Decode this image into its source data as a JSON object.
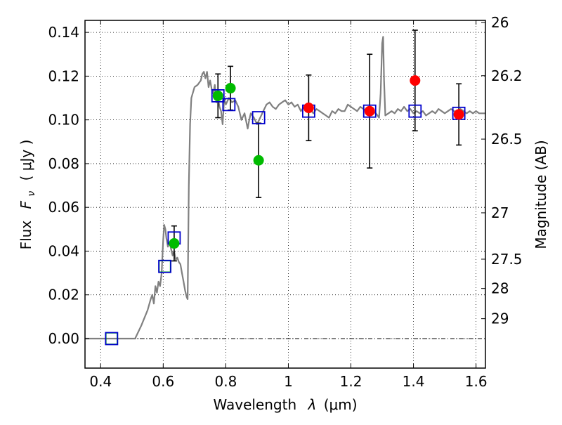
{
  "chart_data": {
    "type": "scatter",
    "xlabel_text": "Wavelength",
    "xlabel_symbol": "λ",
    "xlabel_unit": "(μm)",
    "ylabel_text": "Flux",
    "ylabel_symbol": "F",
    "ylabel_sub": "ν",
    "ylabel_unit": "( μJy )",
    "y2label": "Magnitude (AB)",
    "xlim": [
      0.35,
      1.63
    ],
    "ylim": [
      -0.0135,
      0.1455
    ],
    "grid": true,
    "x_ticks": [
      {
        "value": 0.4,
        "label": "0.4"
      },
      {
        "value": 0.6,
        "label": "0.6"
      },
      {
        "value": 0.8,
        "label": "0.8"
      },
      {
        "value": 1.0,
        "label": "1"
      },
      {
        "value": 1.2,
        "label": "1.2"
      },
      {
        "value": 1.4,
        "label": "1.4"
      },
      {
        "value": 1.6,
        "label": "1.6"
      }
    ],
    "y_ticks": [
      {
        "value": 0.0,
        "label": "0.00"
      },
      {
        "value": 0.02,
        "label": "0.02"
      },
      {
        "value": 0.04,
        "label": "0.04"
      },
      {
        "value": 0.06,
        "label": "0.06"
      },
      {
        "value": 0.08,
        "label": "0.08"
      },
      {
        "value": 0.1,
        "label": "0.10"
      },
      {
        "value": 0.12,
        "label": "0.12"
      },
      {
        "value": 0.14,
        "label": "0.14"
      }
    ],
    "y2_ticks": [
      {
        "label": "26",
        "flux": 0.1445
      },
      {
        "label": "26.2",
        "flux": 0.1202
      },
      {
        "label": "26.5",
        "flux": 0.0912
      },
      {
        "label": "27",
        "flux": 0.0575
      },
      {
        "label": "27.5",
        "flux": 0.0363
      },
      {
        "label": "28",
        "flux": 0.0229
      },
      {
        "label": "29",
        "flux": 0.0091
      }
    ],
    "model_spectrum": {
      "color": "#808080",
      "points": [
        [
          0.35,
          0.0
        ],
        [
          0.45,
          0.0
        ],
        [
          0.5,
          0.0
        ],
        [
          0.51,
          0.0
        ],
        [
          0.53,
          0.006
        ],
        [
          0.55,
          0.013
        ],
        [
          0.56,
          0.018
        ],
        [
          0.565,
          0.02
        ],
        [
          0.57,
          0.016
        ],
        [
          0.575,
          0.024
        ],
        [
          0.58,
          0.021
        ],
        [
          0.585,
          0.026
        ],
        [
          0.59,
          0.024
        ],
        [
          0.595,
          0.03
        ],
        [
          0.6,
          0.045
        ],
        [
          0.603,
          0.052
        ],
        [
          0.607,
          0.05
        ],
        [
          0.61,
          0.046
        ],
        [
          0.615,
          0.042
        ],
        [
          0.62,
          0.044
        ],
        [
          0.625,
          0.041
        ],
        [
          0.63,
          0.038
        ],
        [
          0.635,
          0.04
        ],
        [
          0.64,
          0.036
        ],
        [
          0.645,
          0.037
        ],
        [
          0.65,
          0.035
        ],
        [
          0.655,
          0.034
        ],
        [
          0.66,
          0.03
        ],
        [
          0.665,
          0.026
        ],
        [
          0.67,
          0.022
        ],
        [
          0.675,
          0.019
        ],
        [
          0.678,
          0.018
        ],
        [
          0.682,
          0.07
        ],
        [
          0.686,
          0.098
        ],
        [
          0.69,
          0.11
        ],
        [
          0.7,
          0.115
        ],
        [
          0.71,
          0.116
        ],
        [
          0.72,
          0.118
        ],
        [
          0.725,
          0.121
        ],
        [
          0.73,
          0.122
        ],
        [
          0.735,
          0.119
        ],
        [
          0.74,
          0.122
        ],
        [
          0.745,
          0.115
        ],
        [
          0.75,
          0.118
        ],
        [
          0.755,
          0.114
        ],
        [
          0.76,
          0.112
        ],
        [
          0.765,
          0.116
        ],
        [
          0.77,
          0.108
        ],
        [
          0.775,
          0.11
        ],
        [
          0.78,
          0.106
        ],
        [
          0.785,
          0.104
        ],
        [
          0.79,
          0.098
        ],
        [
          0.795,
          0.11
        ],
        [
          0.8,
          0.107
        ],
        [
          0.81,
          0.11
        ],
        [
          0.82,
          0.108
        ],
        [
          0.83,
          0.109
        ],
        [
          0.84,
          0.106
        ],
        [
          0.85,
          0.1
        ],
        [
          0.86,
          0.103
        ],
        [
          0.87,
          0.096
        ],
        [
          0.875,
          0.1
        ],
        [
          0.88,
          0.103
        ],
        [
          0.89,
          0.101
        ],
        [
          0.9,
          0.098
        ],
        [
          0.91,
          0.101
        ],
        [
          0.92,
          0.104
        ],
        [
          0.93,
          0.107
        ],
        [
          0.94,
          0.108
        ],
        [
          0.95,
          0.106
        ],
        [
          0.96,
          0.105
        ],
        [
          0.97,
          0.107
        ],
        [
          0.98,
          0.108
        ],
        [
          0.99,
          0.109
        ],
        [
          1.0,
          0.107
        ],
        [
          1.01,
          0.108
        ],
        [
          1.02,
          0.106
        ],
        [
          1.03,
          0.107
        ],
        [
          1.04,
          0.104
        ],
        [
          1.05,
          0.106
        ],
        [
          1.06,
          0.104
        ],
        [
          1.07,
          0.105
        ],
        [
          1.08,
          0.103
        ],
        [
          1.09,
          0.105
        ],
        [
          1.1,
          0.104
        ],
        [
          1.11,
          0.103
        ],
        [
          1.12,
          0.102
        ],
        [
          1.13,
          0.101
        ],
        [
          1.14,
          0.104
        ],
        [
          1.15,
          0.103
        ],
        [
          1.16,
          0.105
        ],
        [
          1.17,
          0.104
        ],
        [
          1.18,
          0.104
        ],
        [
          1.19,
          0.107
        ],
        [
          1.2,
          0.106
        ],
        [
          1.21,
          0.105
        ],
        [
          1.22,
          0.104
        ],
        [
          1.23,
          0.106
        ],
        [
          1.24,
          0.105
        ],
        [
          1.25,
          0.104
        ],
        [
          1.26,
          0.103
        ],
        [
          1.27,
          0.104
        ],
        [
          1.28,
          0.103
        ],
        [
          1.29,
          0.101
        ],
        [
          1.295,
          0.112
        ],
        [
          1.3,
          0.135
        ],
        [
          1.303,
          0.138
        ],
        [
          1.306,
          0.118
        ],
        [
          1.31,
          0.102
        ],
        [
          1.32,
          0.103
        ],
        [
          1.33,
          0.104
        ],
        [
          1.34,
          0.103
        ],
        [
          1.35,
          0.105
        ],
        [
          1.36,
          0.104
        ],
        [
          1.37,
          0.106
        ],
        [
          1.38,
          0.104
        ],
        [
          1.39,
          0.105
        ],
        [
          1.4,
          0.103
        ],
        [
          1.41,
          0.104
        ],
        [
          1.42,
          0.103
        ],
        [
          1.43,
          0.104
        ],
        [
          1.44,
          0.102
        ],
        [
          1.45,
          0.103
        ],
        [
          1.46,
          0.104
        ],
        [
          1.47,
          0.103
        ],
        [
          1.48,
          0.105
        ],
        [
          1.49,
          0.104
        ],
        [
          1.5,
          0.103
        ],
        [
          1.51,
          0.104
        ],
        [
          1.52,
          0.105
        ],
        [
          1.53,
          0.104
        ],
        [
          1.54,
          0.103
        ],
        [
          1.55,
          0.105
        ],
        [
          1.56,
          0.104
        ],
        [
          1.57,
          0.103
        ],
        [
          1.58,
          0.104
        ],
        [
          1.59,
          0.103
        ],
        [
          1.6,
          0.104
        ],
        [
          1.61,
          0.103
        ],
        [
          1.62,
          0.103
        ],
        [
          1.63,
          0.103
        ]
      ]
    },
    "model_fluxes": {
      "color": "#0000cc",
      "points": [
        [
          0.435,
          0.0
        ],
        [
          0.605,
          0.033
        ],
        [
          0.635,
          0.046
        ],
        [
          0.775,
          0.111
        ],
        [
          0.81,
          0.107
        ],
        [
          0.905,
          0.101
        ],
        [
          1.065,
          0.104
        ],
        [
          1.26,
          0.104
        ],
        [
          1.405,
          0.104
        ],
        [
          1.545,
          0.103
        ]
      ]
    },
    "green_boxes": [
      [
        0.435,
        0.0
      ],
      [
        0.605,
        0.033
      ]
    ],
    "observed_green": {
      "color": "#00bb00",
      "points": [
        {
          "x": 0.635,
          "y": 0.0435,
          "err": 0.008
        },
        {
          "x": 0.775,
          "y": 0.111,
          "err": 0.01
        },
        {
          "x": 0.815,
          "y": 0.1145,
          "err": 0.01
        },
        {
          "x": 0.905,
          "y": 0.0815,
          "err": 0.017
        }
      ]
    },
    "observed_red": {
      "color": "#ff0000",
      "points": [
        {
          "x": 1.065,
          "y": 0.1055,
          "err": 0.015
        },
        {
          "x": 1.26,
          "y": 0.104,
          "err": 0.026
        },
        {
          "x": 1.405,
          "y": 0.118,
          "err": 0.023
        },
        {
          "x": 1.545,
          "y": 0.1025,
          "err": 0.014
        }
      ]
    }
  }
}
